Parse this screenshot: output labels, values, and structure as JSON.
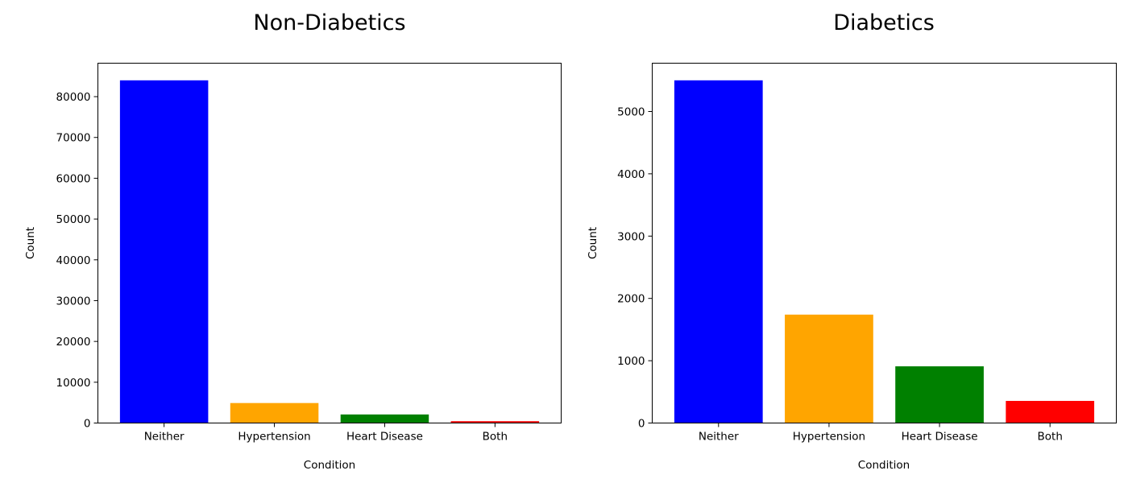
{
  "chart_data": [
    {
      "type": "bar",
      "title": "Non-Diabetics",
      "xlabel": "Condition",
      "ylabel": "Count",
      "categories": [
        "Neither",
        "Hypertension",
        "Heart Disease",
        "Both"
      ],
      "values": [
        84000,
        4900,
        2100,
        450
      ],
      "colors": [
        "#0000ff",
        "#ffa500",
        "#008000",
        "#ff0000"
      ],
      "ylim": [
        0,
        88200
      ],
      "yticks": [
        0,
        10000,
        20000,
        30000,
        40000,
        50000,
        60000,
        70000,
        80000
      ],
      "grid": false,
      "legend": "none"
    },
    {
      "type": "bar",
      "title": "Diabetics",
      "xlabel": "Condition",
      "ylabel": "Count",
      "categories": [
        "Neither",
        "Hypertension",
        "Heart Disease",
        "Both"
      ],
      "values": [
        5500,
        1740,
        910,
        355
      ],
      "colors": [
        "#0000ff",
        "#ffa500",
        "#008000",
        "#ff0000"
      ],
      "ylim": [
        0,
        5775
      ],
      "yticks": [
        0,
        1000,
        2000,
        3000,
        4000,
        5000
      ],
      "grid": false,
      "legend": "none"
    }
  ]
}
